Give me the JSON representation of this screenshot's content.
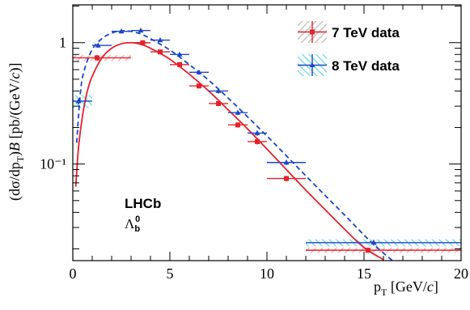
{
  "chart_data": {
    "type": "scatter",
    "title": "",
    "xlabel": "p_T [GeV/c]",
    "ylabel": "(dσ/dp_T)B [pb/(GeV/c)]",
    "x_axis": {
      "range": [
        0,
        20
      ],
      "ticks": [
        0,
        5,
        10,
        15,
        20
      ],
      "tick_labels": [
        "0",
        "5",
        "10",
        "15",
        "20"
      ]
    },
    "y_axis": {
      "scale": "log",
      "range": [
        0.016,
        2.05
      ],
      "major_ticks": [
        0.1,
        1
      ],
      "tick_labels": [
        "10⁻¹",
        "1"
      ]
    },
    "annotations": [
      "LHCb",
      "Λb0"
    ],
    "legend": {
      "placement": "top-right",
      "entries": [
        {
          "label": "7 TeV data",
          "color": "#e8202a"
        },
        {
          "label": "8 TeV data",
          "color": "#1a44cc"
        }
      ]
    },
    "series": [
      {
        "name": "7 TeV data",
        "color": "#e8202a",
        "marker": "square",
        "points": [
          {
            "x": 1.25,
            "y": 0.75,
            "xlo": 0,
            "xhi": 3,
            "yerr": 0.04
          },
          {
            "x": 3.6,
            "y": 1.0,
            "xlo": 3,
            "xhi": 4,
            "yerr": 0.04
          },
          {
            "x": 4.5,
            "y": 0.84,
            "xlo": 4,
            "xhi": 5,
            "yerr": 0.035
          },
          {
            "x": 5.5,
            "y": 0.66,
            "xlo": 5,
            "xhi": 6,
            "yerr": 0.03
          },
          {
            "x": 6.5,
            "y": 0.44,
            "xlo": 6,
            "xhi": 7,
            "yerr": 0.02
          },
          {
            "x": 7.5,
            "y": 0.315,
            "xlo": 7,
            "xhi": 8,
            "yerr": 0.014
          },
          {
            "x": 8.5,
            "y": 0.21,
            "xlo": 8,
            "xhi": 9,
            "yerr": 0.01
          },
          {
            "x": 9.5,
            "y": 0.153,
            "xlo": 9,
            "xhi": 10,
            "yerr": 0.008
          },
          {
            "x": 11,
            "y": 0.076,
            "xlo": 10,
            "xhi": 12,
            "yerr": 0.004
          },
          {
            "x": 15.2,
            "y": 0.0195,
            "xlo": 12,
            "xhi": 20,
            "yerr": 0.001
          }
        ],
        "systematics": [
          {
            "xlo": 0,
            "xhi": 3,
            "ylo": 0.71,
            "yhi": 0.79
          },
          {
            "xlo": 12,
            "xhi": 20,
            "ylo": 0.0185,
            "yhi": 0.0205
          }
        ]
      },
      {
        "name": "8 TeV data",
        "color": "#1a44cc",
        "marker": "triangle",
        "points": [
          {
            "x": 0.3,
            "y": 0.33,
            "xlo": 0,
            "xhi": 1,
            "yerr": 0.02
          },
          {
            "x": 1.3,
            "y": 0.95,
            "xlo": 1,
            "xhi": 2,
            "yerr": 0.04
          },
          {
            "x": 2.5,
            "y": 1.24,
            "xlo": 2,
            "xhi": 3,
            "yerr": 0.05
          },
          {
            "x": 3.5,
            "y": 1.26,
            "xlo": 3,
            "xhi": 4,
            "yerr": 0.05
          },
          {
            "x": 4.5,
            "y": 1.05,
            "xlo": 4,
            "xhi": 5,
            "yerr": 0.04
          },
          {
            "x": 5.5,
            "y": 0.8,
            "xlo": 5,
            "xhi": 6,
            "yerr": 0.03
          },
          {
            "x": 6.5,
            "y": 0.57,
            "xlo": 6,
            "xhi": 7,
            "yerr": 0.025
          },
          {
            "x": 7.5,
            "y": 0.4,
            "xlo": 7,
            "xhi": 8,
            "yerr": 0.018
          },
          {
            "x": 8.5,
            "y": 0.265,
            "xlo": 8,
            "xhi": 9,
            "yerr": 0.012
          },
          {
            "x": 9.5,
            "y": 0.18,
            "xlo": 9,
            "xhi": 10,
            "yerr": 0.009
          },
          {
            "x": 11,
            "y": 0.103,
            "xlo": 10,
            "xhi": 12,
            "yerr": 0.005
          },
          {
            "x": 15.5,
            "y": 0.0225,
            "xlo": 12,
            "xhi": 20,
            "yerr": 0.0012
          }
        ],
        "systematics": [
          {
            "xlo": 0,
            "xhi": 1,
            "ylo": 0.29,
            "yhi": 0.37
          },
          {
            "xlo": 12,
            "xhi": 20,
            "ylo": 0.021,
            "yhi": 0.024
          }
        ]
      }
    ],
    "fits": [
      {
        "series": "7 TeV data",
        "color": "#e8202a",
        "style": "solid",
        "points": [
          [
            0.15,
            0.065
          ],
          [
            0.3,
            0.14
          ],
          [
            0.5,
            0.25
          ],
          [
            0.75,
            0.4
          ],
          [
            1.0,
            0.53
          ],
          [
            1.5,
            0.75
          ],
          [
            2.0,
            0.9
          ],
          [
            2.5,
            0.98
          ],
          [
            3.0,
            1.0
          ],
          [
            3.5,
            0.97
          ],
          [
            4.0,
            0.9
          ],
          [
            5.0,
            0.73
          ],
          [
            6.0,
            0.55
          ],
          [
            7.0,
            0.4
          ],
          [
            8.0,
            0.28
          ],
          [
            9.0,
            0.195
          ],
          [
            10.0,
            0.133
          ],
          [
            11.0,
            0.09
          ],
          [
            12.0,
            0.061
          ],
          [
            13.0,
            0.042
          ],
          [
            14.0,
            0.029
          ],
          [
            15.0,
            0.0205
          ],
          [
            16.0,
            0.0163
          ]
        ]
      },
      {
        "series": "8 TeV data",
        "color": "#1a44cc",
        "style": "dashed",
        "points": [
          [
            0.2,
            0.15
          ],
          [
            0.4,
            0.4
          ],
          [
            0.6,
            0.6
          ],
          [
            1.0,
            0.88
          ],
          [
            1.5,
            1.08
          ],
          [
            2.0,
            1.2
          ],
          [
            2.5,
            1.25
          ],
          [
            3.0,
            1.24
          ],
          [
            3.5,
            1.18
          ],
          [
            4.0,
            1.08
          ],
          [
            5.0,
            0.87
          ],
          [
            6.0,
            0.66
          ],
          [
            7.0,
            0.49
          ],
          [
            8.0,
            0.35
          ],
          [
            9.0,
            0.245
          ],
          [
            10.0,
            0.17
          ],
          [
            11.0,
            0.117
          ],
          [
            12.0,
            0.08
          ],
          [
            13.0,
            0.055
          ],
          [
            14.0,
            0.038
          ],
          [
            15.0,
            0.026
          ],
          [
            15.6,
            0.021
          ],
          [
            16.5,
            0.0158
          ]
        ]
      }
    ]
  }
}
